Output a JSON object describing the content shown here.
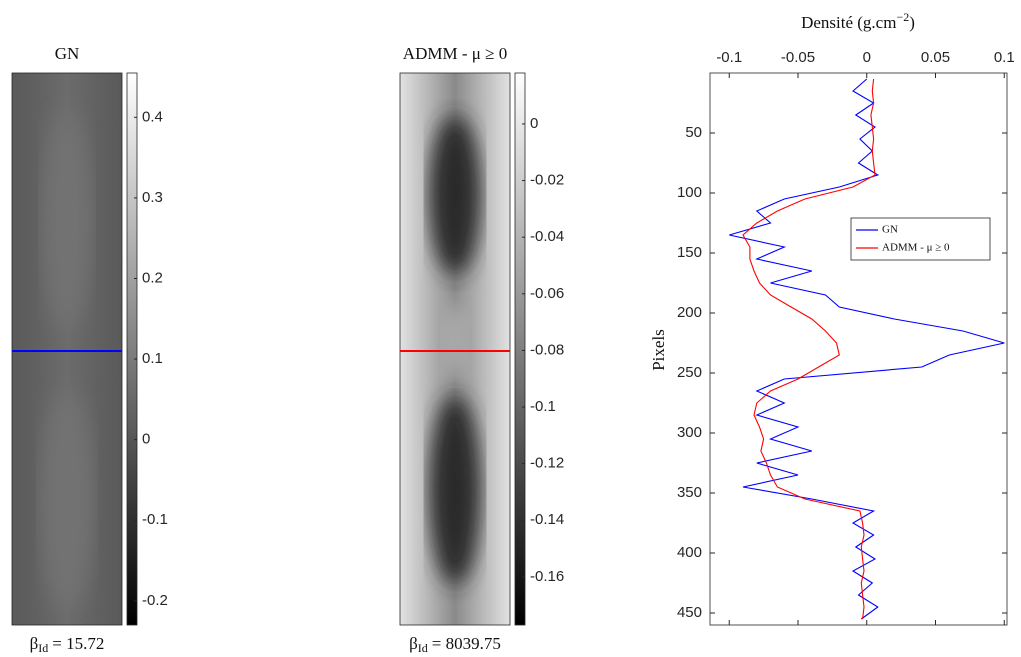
{
  "chart_data": [
    {
      "type": "image",
      "title": "GN",
      "caption": {
        "symbol": "β",
        "subscript": "Id",
        "text": "= 15.72"
      },
      "clim": [
        -0.23,
        0.455
      ],
      "cticks": [
        0.4,
        0.3,
        0.2,
        0.1,
        0,
        -0.1,
        -0.2
      ],
      "profile_color": "#0000ff"
    },
    {
      "type": "image",
      "title": "ADMM - μ ≥ 0",
      "caption": {
        "symbol": "β",
        "subscript": "Id",
        "text": "= 8039.75"
      },
      "clim": [
        -0.177,
        0.018
      ],
      "cticks": [
        0,
        -0.02,
        -0.04,
        -0.06,
        -0.08,
        -0.1,
        -0.12,
        -0.14,
        -0.16
      ],
      "profile_color": "#ff0000"
    },
    {
      "type": "line",
      "xlabel": {
        "text": "Densité (g.cm",
        "superscript": "−2",
        "close": ")"
      },
      "ylabel": "Pixels",
      "xlim": [
        -0.114,
        0.102
      ],
      "xticks": [
        -0.1,
        -0.05,
        0,
        0.05,
        0.1
      ],
      "ylim": [
        0,
        460
      ],
      "yticks": [
        50,
        100,
        150,
        200,
        250,
        300,
        350,
        400,
        450
      ],
      "legend_position": "center right",
      "y": [
        5,
        15,
        25,
        35,
        45,
        55,
        65,
        75,
        85,
        95,
        105,
        115,
        125,
        135,
        145,
        155,
        165,
        175,
        185,
        195,
        205,
        215,
        225,
        235,
        245,
        255,
        265,
        275,
        285,
        295,
        305,
        315,
        325,
        335,
        345,
        355,
        365,
        375,
        385,
        395,
        405,
        415,
        425,
        435,
        445,
        455
      ],
      "series": [
        {
          "name": "GN",
          "color": "#0000ff",
          "values": [
            0,
            -0.01,
            0.005,
            -0.008,
            0.006,
            -0.005,
            0.004,
            -0.006,
            0.008,
            -0.02,
            -0.06,
            -0.08,
            -0.07,
            -0.1,
            -0.06,
            -0.08,
            -0.04,
            -0.07,
            -0.03,
            -0.02,
            0.02,
            0.07,
            0.1,
            0.06,
            0.04,
            -0.06,
            -0.08,
            -0.06,
            -0.08,
            -0.05,
            -0.07,
            -0.04,
            -0.08,
            -0.05,
            -0.09,
            -0.04,
            0.005,
            -0.01,
            0.005,
            -0.008,
            0.006,
            -0.01,
            0.004,
            -0.006,
            0.008,
            -0.004
          ]
        },
        {
          "name": "ADMM - μ ≥ 0",
          "color": "#ff0000",
          "values": [
            0.005,
            0.004,
            0.005,
            0.003,
            0.004,
            0.005,
            0.004,
            0.005,
            0.006,
            -0.01,
            -0.045,
            -0.065,
            -0.08,
            -0.09,
            -0.085,
            -0.085,
            -0.082,
            -0.078,
            -0.07,
            -0.055,
            -0.04,
            -0.03,
            -0.022,
            -0.02,
            -0.035,
            -0.05,
            -0.07,
            -0.08,
            -0.082,
            -0.078,
            -0.075,
            -0.077,
            -0.073,
            -0.07,
            -0.065,
            -0.045,
            -0.005,
            -0.003,
            -0.002,
            -0.004,
            -0.003,
            -0.002,
            -0.004,
            -0.003,
            -0.002,
            -0.003
          ]
        }
      ]
    }
  ]
}
